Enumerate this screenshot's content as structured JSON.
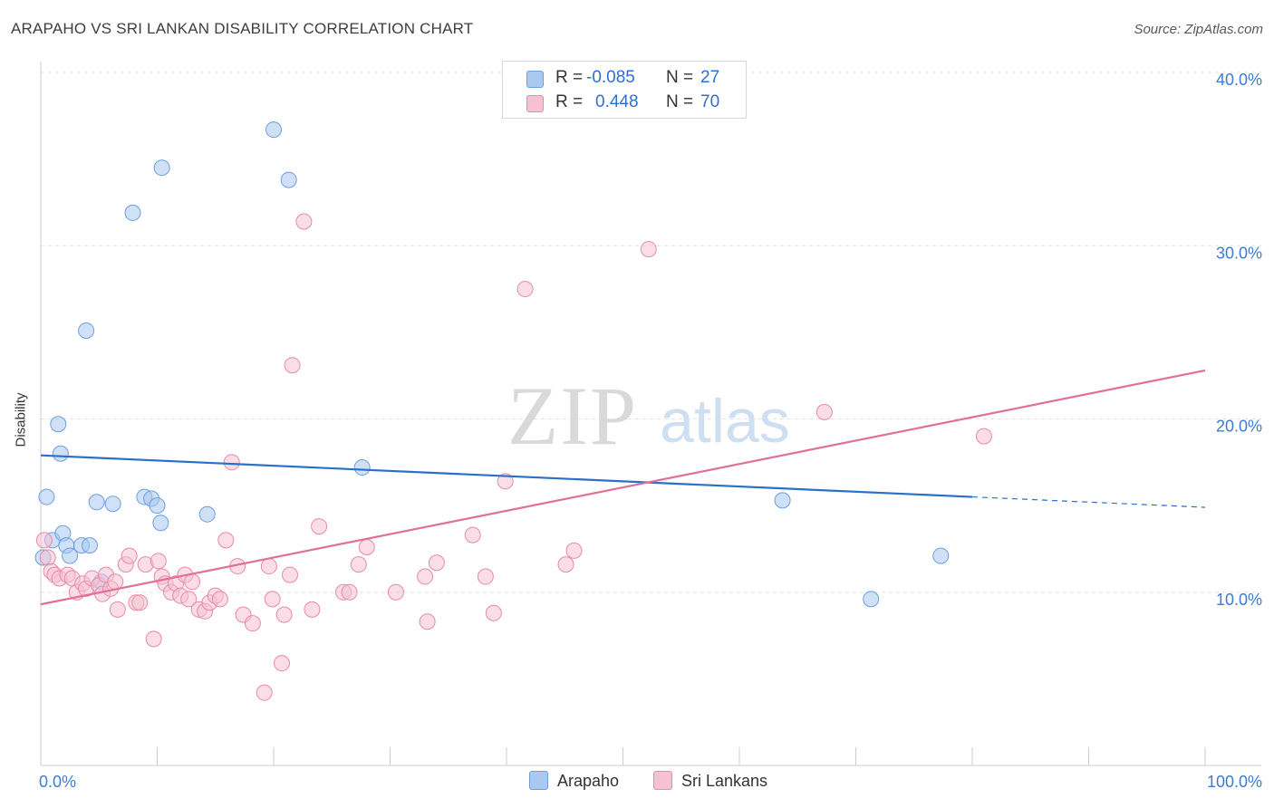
{
  "title": "ARAPAHO VS SRI LANKAN DISABILITY CORRELATION CHART",
  "source": "Source: ZipAtlas.com",
  "watermark": {
    "zip": "ZIP",
    "atlas": "atlas"
  },
  "stats": [
    {
      "r_label": "R =",
      "r_value": "-0.085",
      "n_label": "N =",
      "n_value": "27",
      "color": "#a9c9f0",
      "border": "#6a9fe0"
    },
    {
      "r_label": "R =",
      "r_value": "0.448",
      "n_label": "N =",
      "n_value": "70",
      "color": "#f6c1d2",
      "border": "#e98aa8"
    }
  ],
  "chart_data": {
    "type": "scatter",
    "xlabel": "",
    "ylabel": "Disability",
    "xlim": [
      0,
      100
    ],
    "ylim": [
      0,
      40
    ],
    "x_tick_labels": [
      {
        "value": 0,
        "label": "0.0%"
      },
      {
        "value": 100,
        "label": "100.0%"
      }
    ],
    "y_tick_labels": [
      {
        "value": 10,
        "label": "10.0%"
      },
      {
        "value": 20,
        "label": "20.0%"
      },
      {
        "value": 30,
        "label": "30.0%"
      },
      {
        "value": 40,
        "label": "40.0%"
      }
    ],
    "legend_position": "bottom",
    "series": [
      {
        "name": "Arapaho",
        "color": "#6a9fe0",
        "fill": "#a9c9f0",
        "line_color": "#2a6fc9",
        "trend": {
          "x0": 0,
          "y0": 17.9,
          "x1": 80,
          "y1": 15.5,
          "dash_to_x": 100,
          "dash_to_y": 14.9
        },
        "points": [
          [
            0.2,
            12.0
          ],
          [
            0.5,
            15.5
          ],
          [
            1.0,
            13.0
          ],
          [
            1.5,
            19.7
          ],
          [
            1.7,
            18.0
          ],
          [
            1.9,
            13.4
          ],
          [
            2.2,
            12.7
          ],
          [
            2.5,
            12.1
          ],
          [
            3.5,
            12.7
          ],
          [
            3.9,
            25.1
          ],
          [
            4.2,
            12.7
          ],
          [
            4.8,
            15.2
          ],
          [
            5.2,
            10.6
          ],
          [
            6.2,
            15.1
          ],
          [
            7.9,
            31.9
          ],
          [
            8.9,
            15.5
          ],
          [
            9.5,
            15.4
          ],
          [
            10.0,
            15.0
          ],
          [
            10.3,
            14.0
          ],
          [
            10.4,
            34.5
          ],
          [
            14.3,
            14.5
          ],
          [
            20.0,
            36.7
          ],
          [
            21.3,
            33.8
          ],
          [
            27.6,
            17.2
          ],
          [
            63.7,
            15.3
          ],
          [
            77.3,
            12.1
          ],
          [
            71.3,
            9.6
          ]
        ]
      },
      {
        "name": "Sri Lankans",
        "color": "#e98aa8",
        "fill": "#f6c1d2",
        "line_color": "#e0709a",
        "trend": {
          "x0": 0,
          "y0": 9.3,
          "x1": 100,
          "y1": 22.8
        },
        "points": [
          [
            0.3,
            13.0
          ],
          [
            0.6,
            12.0
          ],
          [
            0.9,
            11.2
          ],
          [
            1.2,
            11.0
          ],
          [
            1.6,
            10.8
          ],
          [
            2.3,
            11.0
          ],
          [
            2.7,
            10.8
          ],
          [
            3.1,
            10.0
          ],
          [
            3.6,
            10.5
          ],
          [
            3.9,
            10.2
          ],
          [
            4.4,
            10.8
          ],
          [
            5.0,
            10.4
          ],
          [
            5.3,
            9.9
          ],
          [
            5.6,
            11.0
          ],
          [
            6.0,
            10.2
          ],
          [
            6.4,
            10.6
          ],
          [
            6.6,
            9.0
          ],
          [
            7.3,
            11.6
          ],
          [
            7.6,
            12.1
          ],
          [
            8.2,
            9.4
          ],
          [
            8.5,
            9.4
          ],
          [
            9.0,
            11.6
          ],
          [
            9.7,
            7.3
          ],
          [
            10.1,
            11.8
          ],
          [
            10.4,
            10.9
          ],
          [
            10.7,
            10.5
          ],
          [
            11.2,
            10.0
          ],
          [
            11.6,
            10.5
          ],
          [
            12.0,
            9.8
          ],
          [
            12.4,
            11.0
          ],
          [
            12.7,
            9.6
          ],
          [
            13.0,
            10.6
          ],
          [
            13.6,
            9.0
          ],
          [
            14.1,
            8.9
          ],
          [
            14.5,
            9.4
          ],
          [
            15.0,
            9.8
          ],
          [
            15.4,
            9.6
          ],
          [
            15.9,
            13.0
          ],
          [
            16.4,
            17.5
          ],
          [
            16.9,
            11.5
          ],
          [
            17.4,
            8.7
          ],
          [
            18.2,
            8.2
          ],
          [
            19.2,
            4.2
          ],
          [
            19.6,
            11.5
          ],
          [
            19.9,
            9.6
          ],
          [
            20.7,
            5.9
          ],
          [
            20.9,
            8.7
          ],
          [
            21.4,
            11.0
          ],
          [
            21.6,
            23.1
          ],
          [
            22.6,
            31.4
          ],
          [
            23.3,
            9.0
          ],
          [
            23.9,
            13.8
          ],
          [
            26.0,
            10.0
          ],
          [
            26.5,
            10.0
          ],
          [
            27.3,
            11.6
          ],
          [
            28.0,
            12.6
          ],
          [
            30.5,
            10.0
          ],
          [
            33.0,
            10.9
          ],
          [
            33.2,
            8.3
          ],
          [
            34.0,
            11.7
          ],
          [
            37.1,
            13.3
          ],
          [
            38.2,
            10.9
          ],
          [
            38.9,
            8.8
          ],
          [
            39.9,
            16.4
          ],
          [
            41.6,
            27.5
          ],
          [
            45.1,
            11.6
          ],
          [
            45.8,
            12.4
          ],
          [
            52.2,
            29.8
          ],
          [
            67.3,
            20.4
          ],
          [
            81.0,
            19.0
          ]
        ]
      }
    ]
  }
}
